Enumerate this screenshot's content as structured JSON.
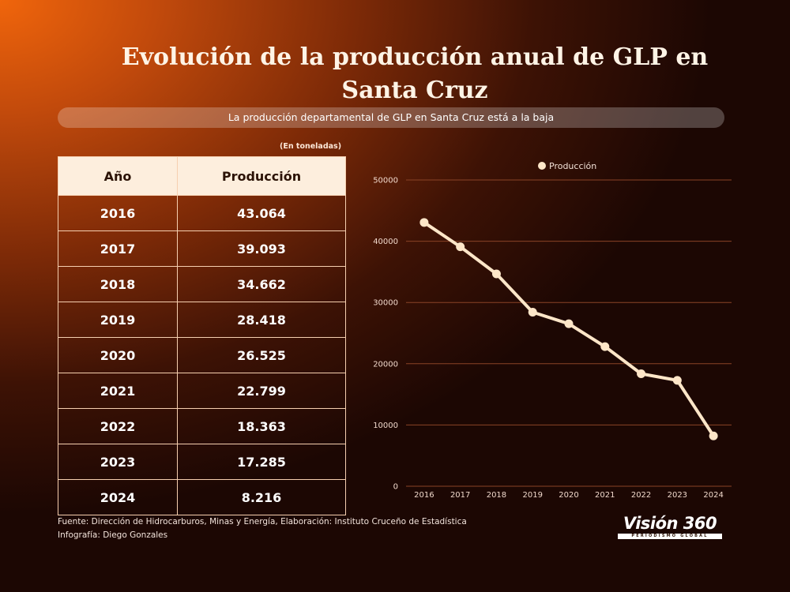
{
  "title": "Evolución de la producción anual de GLP en Santa Cruz",
  "subtitle": "La producción departamental de GLP en Santa Cruz está a la baja",
  "units_note": "(En toneladas)",
  "table": {
    "headers": [
      "Año",
      "Producción"
    ],
    "rows": [
      [
        "2016",
        "43.064"
      ],
      [
        "2017",
        "39.093"
      ],
      [
        "2018",
        "34.662"
      ],
      [
        "2019",
        "28.418"
      ],
      [
        "2020",
        "26.525"
      ],
      [
        "2021",
        "22.799"
      ],
      [
        "2022",
        "18.363"
      ],
      [
        "2023",
        "17.285"
      ],
      [
        "2024",
        "8.216"
      ]
    ]
  },
  "chart_data": {
    "type": "line",
    "categories": [
      "2016",
      "2017",
      "2018",
      "2019",
      "2020",
      "2021",
      "2022",
      "2023",
      "2024"
    ],
    "series": [
      {
        "name": "Producción",
        "values": [
          43064,
          39093,
          34662,
          28418,
          26525,
          22799,
          18363,
          17285,
          8216
        ]
      }
    ],
    "y_ticks": [
      "0",
      "10000",
      "20000",
      "30000",
      "40000",
      "50000"
    ],
    "ylim": [
      0,
      50000
    ],
    "grid": true,
    "legend_position": "top",
    "line_color": "#fde6c8",
    "grid_color": "#8a4326"
  },
  "footer": {
    "source": "Fuente: Dirección de Hidrocarburos, Minas y Energía, Elaboración: Instituto Cruceño de Estadística",
    "credit": "Infografía: Diego Gonzales"
  },
  "brand": {
    "name": "Visión 360",
    "tagline": "PERIODISMO GLOBAL"
  }
}
